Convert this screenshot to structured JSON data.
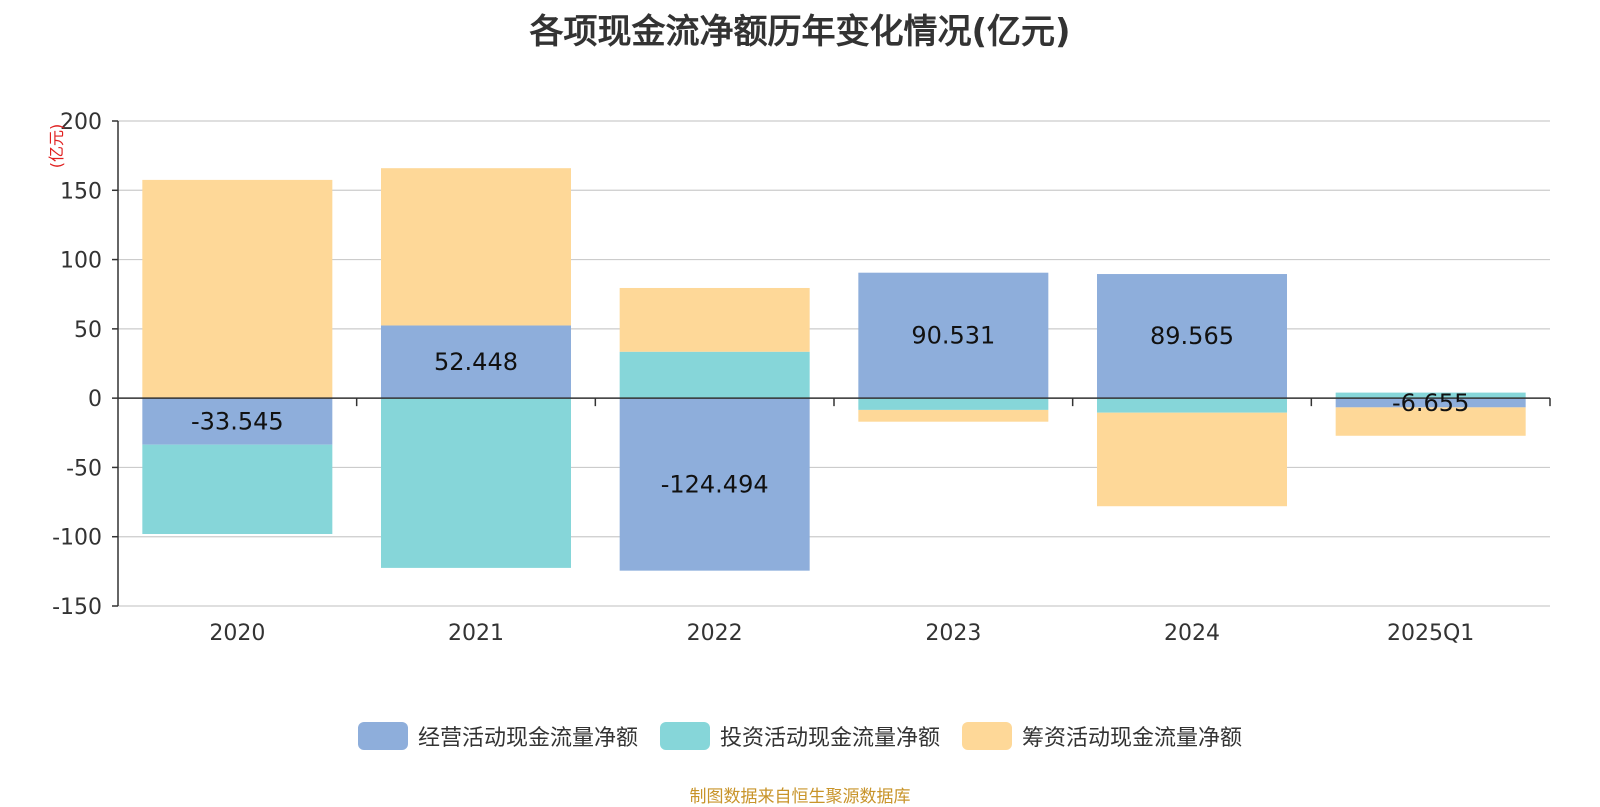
{
  "chart_data": {
    "type": "bar",
    "stacked": true,
    "title": "各项现金流净额历年变化情况(亿元)",
    "ylabel": "(亿元)",
    "ylim": [
      -150,
      200
    ],
    "yticks": [
      200,
      150,
      100,
      50,
      0,
      -50,
      -100,
      -150
    ],
    "grid": true,
    "legend_position": "bottom",
    "categories": [
      "2020",
      "2021",
      "2022",
      "2023",
      "2024",
      "2025Q1"
    ],
    "series": [
      {
        "name": "经营活动现金流量净额",
        "color": "#8eaedb",
        "values": [
          -33.545,
          52.448,
          -124.494,
          90.531,
          89.565,
          -6.655
        ],
        "labels": [
          "-33.545",
          "52.448",
          "-124.494",
          "90.531",
          "89.565",
          "-6.655"
        ]
      },
      {
        "name": "投资活动现金流量净额",
        "color": "#86d6d9",
        "values": [
          -64.5,
          -122.5,
          33.5,
          -8.5,
          -10.5,
          4.0
        ]
      },
      {
        "name": "筹资活动现金流量净额",
        "color": "#fed898",
        "values": [
          157.5,
          113.5,
          46.0,
          -8.5,
          -67.5,
          -20.5
        ]
      }
    ]
  },
  "source": "制图数据来自恒生聚源数据库"
}
